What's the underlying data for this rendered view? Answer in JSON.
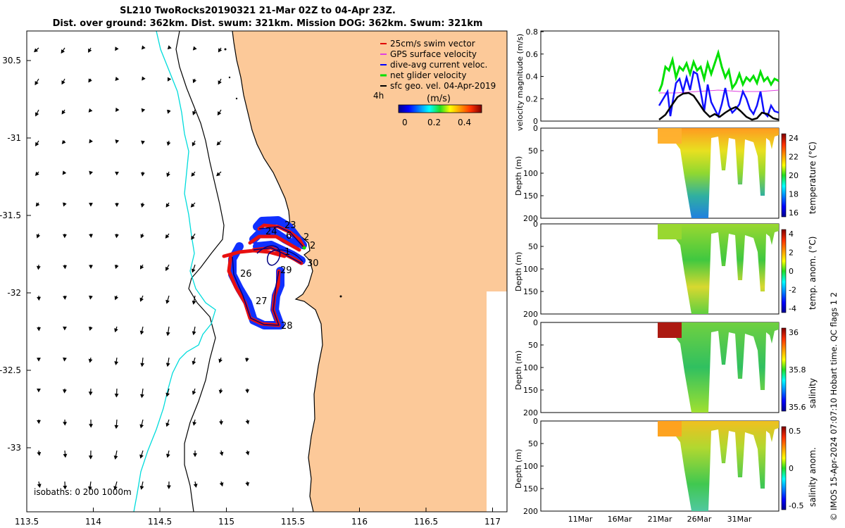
{
  "title": {
    "line1": "SL210 TwoRocks20190321 21-Mar 02Z to 04-Apr 23Z.",
    "line2": "Dist. over ground: 362km. Dist. swum: 321km. Mission DOG: 362km. Swum: 321km"
  },
  "map": {
    "lon_ticks": [
      "113.5",
      "114",
      "114.5",
      "115",
      "115.5",
      "116",
      "116.5",
      "117"
    ],
    "lat_ticks": [
      "30.5",
      "-31",
      "-31.5",
      "-32",
      "-32.5",
      "-33"
    ],
    "legend": [
      {
        "label": "25cm/s swim vector",
        "color": "#e00000"
      },
      {
        "label": "GPS surface velocity",
        "color": "#e040e0"
      },
      {
        "label": "dive-avg current veloc.",
        "color": "#0000ff"
      },
      {
        "label": "net glider velocity",
        "color": "#00e000"
      },
      {
        "label": "sfc geo. vel. 04-Apr-2019",
        "color": "#000000"
      }
    ],
    "colorbar": {
      "label": "(m/s)",
      "ticks": [
        "0",
        "0.2",
        "0.4"
      ],
      "corner_label": "4h"
    },
    "isobaths_label": "isobaths: 0   200  1000m",
    "track_labels": [
      "23",
      "24",
      "6",
      "2",
      "2",
      "1",
      "29",
      "30",
      "26",
      "27",
      "28"
    ],
    "colors": {
      "land": "#fcc999",
      "shelf_isobath": "#00dcdc"
    }
  },
  "panels": {
    "velocity": {
      "ylabel": "velocity magnitude (m/s)",
      "yticks": [
        "0.8",
        "0.6",
        "0.4",
        "0.2",
        "0"
      ]
    },
    "temperature": {
      "ylabel": "Depth (m)",
      "yticks": [
        "0",
        "50",
        "100",
        "150",
        "200"
      ],
      "cbar_label": "temperature (°C)",
      "cbar_ticks": [
        "24",
        "22",
        "20",
        "18",
        "16"
      ]
    },
    "temp_anom": {
      "ylabel": "Depth (m)",
      "yticks": [
        "0",
        "50",
        "100",
        "150",
        "200"
      ],
      "cbar_label": "temp. anom. (°C)",
      "cbar_ticks": [
        "4",
        "2",
        "0",
        "-2",
        "-4"
      ]
    },
    "salinity": {
      "ylabel": "Depth (m)",
      "yticks": [
        "0",
        "50",
        "100",
        "150",
        "200"
      ],
      "cbar_label": "salinity",
      "cbar_ticks": [
        "36",
        "35.8",
        "35.6"
      ]
    },
    "sal_anom": {
      "ylabel": "Depth (m)",
      "yticks": [
        "0",
        "50",
        "100",
        "150",
        "200"
      ],
      "cbar_label": "salinity anom.",
      "cbar_ticks": [
        "0.5",
        "0",
        "-0.5"
      ]
    },
    "time_ticks": [
      "11Mar",
      "16Mar",
      "21Mar",
      "26Mar",
      "31Mar"
    ]
  },
  "side_label": "© IMOS 15-Apr-2024 07:07:10 Hobart time. QC flags 1  2"
}
